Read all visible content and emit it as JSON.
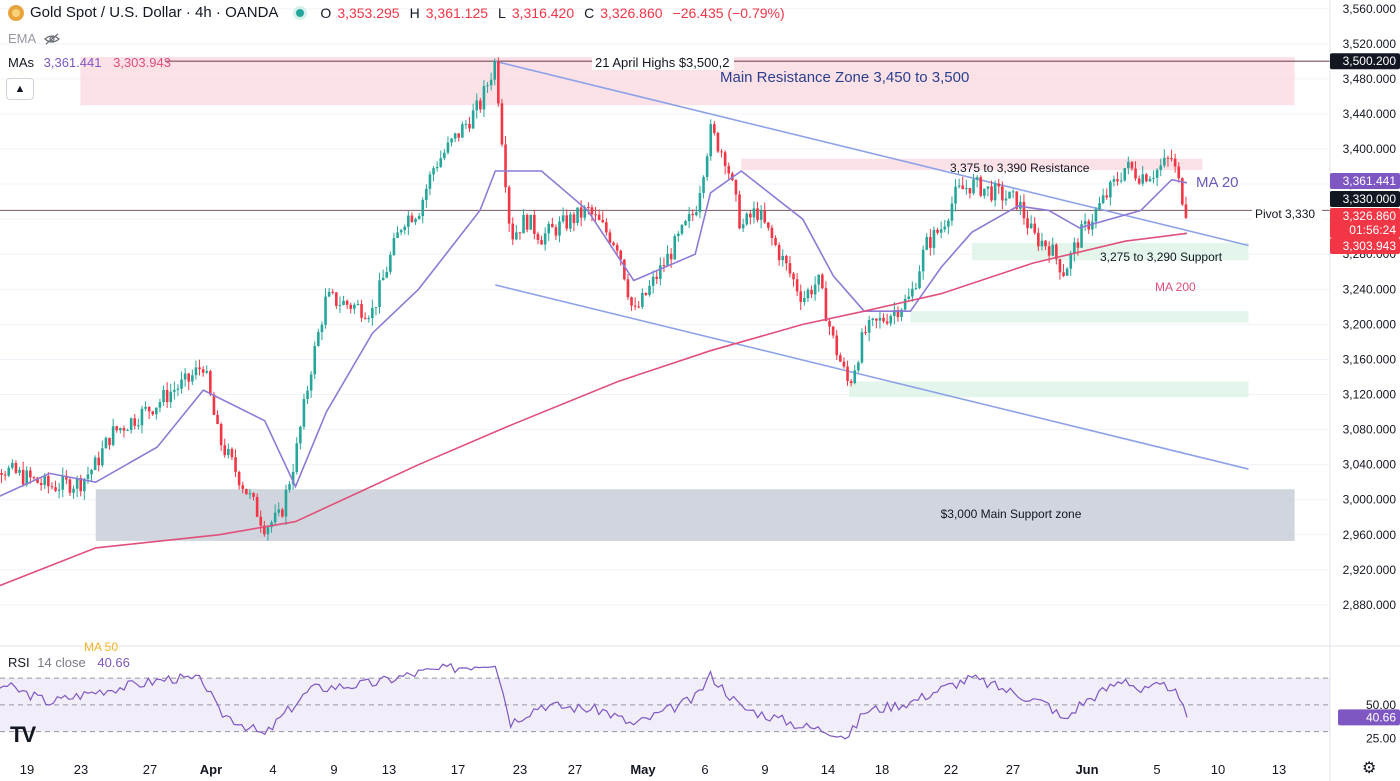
{
  "header": {
    "symbol": "Gold Spot / U.S. Dollar · 4h · OANDA",
    "o_label": "O",
    "o_value": "3,353.295",
    "h_label": "H",
    "h_value": "3,361.125",
    "l_label": "L",
    "l_value": "3,316.420",
    "c_label": "C",
    "c_value": "3,326.860",
    "change": "−26.435 (−0.79%)",
    "ema_label": "EMA",
    "mas_label": "MAs",
    "ma20_value": "3,361.441",
    "ma200_value": "3,303.943",
    "collapse_icon": "chevron-up-icon"
  },
  "rsi_header": {
    "label": "RSI",
    "params": "14 close",
    "value": "40.66"
  },
  "colors": {
    "up": "#26a69a",
    "down": "#f23645",
    "ma20": "#8e7ad6",
    "ma200": "#e0507a",
    "trendline": "#8ea2e8",
    "resistance_fill": "#fbd9e1",
    "support_fill": "#dff5e8",
    "main_support_fill": "#c9ced8",
    "rsi": "#7e57c2",
    "rsi_band": "#ede7f6"
  },
  "chart_data": [
    {
      "type": "candlestick",
      "title": "Gold Spot / U.S. Dollar · 4h · OANDA",
      "y_axis": {
        "ylim": [
          2840,
          3570
        ],
        "ticks": [
          2880,
          2920,
          2960,
          3000,
          3040,
          3080,
          3120,
          3160,
          3200,
          3240,
          3280,
          3320,
          3360,
          3400,
          3440,
          3480,
          3520,
          3560
        ],
        "tick_labels": [
          "2,880.000",
          "2,920.000",
          "2,960.000",
          "3,000.000",
          "3,040.000",
          "3,080.000",
          "3,120.000",
          "3,160.000",
          "3,200.000",
          "3,240.000",
          "3,280.000",
          "3,320.000",
          "3,360.000",
          "3,400.000",
          "3,440.000",
          "3,480.000",
          "3,520.000",
          "3,560.000"
        ]
      },
      "x_axis": {
        "tick_labels": [
          "19",
          "23",
          "27",
          "Apr",
          "4",
          "9",
          "13",
          "17",
          "23",
          "27",
          "May",
          "6",
          "9",
          "14",
          "18",
          "22",
          "27",
          "Jun",
          "5",
          "10",
          "13"
        ],
        "bold_labels": [
          "Apr",
          "May",
          "Jun"
        ]
      },
      "price_path": [
        [
          "2025-03-19",
          3030
        ],
        [
          "2025-03-20",
          3050
        ],
        [
          "2025-03-21",
          3035
        ],
        [
          "2025-03-24",
          3015
        ],
        [
          "2025-03-26",
          3020
        ],
        [
          "2025-03-27",
          3040
        ],
        [
          "2025-03-28",
          3075
        ],
        [
          "2025-03-31",
          3110
        ],
        [
          "2025-04-01",
          3125
        ],
        [
          "2025-04-02",
          3135
        ],
        [
          "2025-04-03",
          3155
        ],
        [
          "2025-04-04",
          3070
        ],
        [
          "2025-04-07",
          2970
        ],
        [
          "2025-04-08",
          2980
        ],
        [
          "2025-04-09",
          3050
        ],
        [
          "2025-04-10",
          3150
        ],
        [
          "2025-04-11",
          3230
        ],
        [
          "2025-04-14",
          3215
        ],
        [
          "2025-04-16",
          3320
        ],
        [
          "2025-04-17",
          3330
        ],
        [
          "2025-04-18",
          3380
        ],
        [
          "2025-04-21",
          3450
        ],
        [
          "2025-04-22",
          3500
        ],
        [
          "2025-04-23",
          3300
        ],
        [
          "2025-04-24",
          3320
        ],
        [
          "2025-04-25",
          3300
        ],
        [
          "2025-04-28",
          3330
        ],
        [
          "2025-04-29",
          3310
        ],
        [
          "2025-04-30",
          3290
        ],
        [
          "2025-05-01",
          3210
        ],
        [
          "2025-05-02",
          3240
        ],
        [
          "2025-05-05",
          3330
        ],
        [
          "2025-05-06",
          3420
        ],
        [
          "2025-05-07",
          3390
        ],
        [
          "2025-05-08",
          3310
        ],
        [
          "2025-05-09",
          3330
        ],
        [
          "2025-05-12",
          3230
        ],
        [
          "2025-05-13",
          3250
        ],
        [
          "2025-05-14",
          3180
        ],
        [
          "2025-05-15",
          3130
        ],
        [
          "2025-05-16",
          3190
        ],
        [
          "2025-05-19",
          3230
        ],
        [
          "2025-05-20",
          3290
        ],
        [
          "2025-05-21",
          3310
        ],
        [
          "2025-05-22",
          3350
        ],
        [
          "2025-05-23",
          3360
        ],
        [
          "2025-05-26",
          3340
        ],
        [
          "2025-05-27",
          3300
        ],
        [
          "2025-05-28",
          3290
        ],
        [
          "2025-05-29",
          3260
        ],
        [
          "2025-05-30",
          3300
        ],
        [
          "2025-06-02",
          3380
        ],
        [
          "2025-06-03",
          3370
        ],
        [
          "2025-06-04",
          3375
        ],
        [
          "2025-06-05",
          3390
        ],
        [
          "2025-06-06",
          3326.86
        ]
      ],
      "series": [
        {
          "name": "MA 20",
          "points": [
            [
              "2025-03-19",
              2990
            ],
            [
              "2025-03-24",
              3030
            ],
            [
              "2025-03-27",
              3020
            ],
            [
              "2025-03-31",
              3060
            ],
            [
              "2025-04-03",
              3125
            ],
            [
              "2025-04-07",
              3090
            ],
            [
              "2025-04-09",
              3015
            ],
            [
              "2025-04-11",
              3100
            ],
            [
              "2025-04-14",
              3190
            ],
            [
              "2025-04-17",
              3240
            ],
            [
              "2025-04-21",
              3330
            ],
            [
              "2025-04-22",
              3375
            ],
            [
              "2025-04-25",
              3375
            ],
            [
              "2025-04-28",
              3330
            ],
            [
              "2025-05-01",
              3250
            ],
            [
              "2025-05-05",
              3280
            ],
            [
              "2025-05-06",
              3350
            ],
            [
              "2025-05-08",
              3375
            ],
            [
              "2025-05-12",
              3320
            ],
            [
              "2025-05-14",
              3255
            ],
            [
              "2025-05-16",
              3215
            ],
            [
              "2025-05-19",
              3215
            ],
            [
              "2025-05-21",
              3265
            ],
            [
              "2025-05-23",
              3305
            ],
            [
              "2025-05-26",
              3335
            ],
            [
              "2025-05-28",
              3330
            ],
            [
              "2025-05-30",
              3310
            ],
            [
              "2025-06-03",
              3330
            ],
            [
              "2025-06-05",
              3365
            ],
            [
              "2025-06-06",
              3361.441
            ]
          ]
        },
        {
          "name": "MA 200",
          "points": [
            [
              "2025-03-19",
              2890
            ],
            [
              "2025-03-27",
              2945
            ],
            [
              "2025-04-04",
              2960
            ],
            [
              "2025-04-09",
              2975
            ],
            [
              "2025-04-17",
              3040
            ],
            [
              "2025-04-23",
              3085
            ],
            [
              "2025-04-30",
              3135
            ],
            [
              "2025-05-06",
              3170
            ],
            [
              "2025-05-12",
              3200
            ],
            [
              "2025-05-16",
              3215
            ],
            [
              "2025-05-21",
              3235
            ],
            [
              "2025-05-27",
              3270
            ],
            [
              "2025-06-02",
              3295
            ],
            [
              "2025-06-06",
              3303.943
            ]
          ]
        }
      ],
      "trendlines": [
        {
          "from": [
            "2025-04-22",
            3500
          ],
          "to": [
            "2025-06-10",
            3290
          ]
        },
        {
          "from": [
            "2025-04-22",
            3245
          ],
          "to": [
            "2025-06-10",
            3035
          ]
        }
      ],
      "zones": [
        {
          "label": "Main Resistance Zone 3,450 to 3,500",
          "low": 3450,
          "high": 3505,
          "from": "2025-03-26",
          "to": "2025-06-13"
        },
        {
          "label": "3,375 to 3,390 Resistance",
          "low": 3376,
          "high": 3389,
          "from": "2025-05-08",
          "to": "2025-06-07"
        },
        {
          "label": "3,275 to 3,290 Support",
          "low": 3273,
          "high": 3293,
          "from": "2025-05-23",
          "to": "2025-06-10"
        },
        {
          "label": "",
          "low": 3202,
          "high": 3215,
          "from": "2025-05-19",
          "to": "2025-06-10"
        },
        {
          "label": "",
          "low": 3117,
          "high": 3135,
          "from": "2025-05-15",
          "to": "2025-06-10"
        },
        {
          "label": "$3,000 Main Support zone",
          "low": 2953,
          "high": 3012,
          "from": "2025-03-27",
          "to": "2025-06-13"
        }
      ],
      "horizontal_lines": [
        {
          "label": "21 April Highs $3,500,2",
          "value": 3500.2
        },
        {
          "label": "Pivot 3,330",
          "value": 3330
        }
      ],
      "annotations": [
        "MA 20",
        "MA 200",
        "MA 50"
      ],
      "price_labels": [
        {
          "text": "3,500.200"
        },
        {
          "text": "3,361.441"
        },
        {
          "text": "3,330.000"
        },
        {
          "text": "3,326.860"
        },
        {
          "text": "01:56:24"
        },
        {
          "text": "3,303.943"
        }
      ]
    },
    {
      "type": "line",
      "title": "RSI 14 close",
      "ylim": [
        20,
        82
      ],
      "tick_labels": [
        "25.00",
        "50.00"
      ],
      "bands": [
        30,
        50,
        70
      ],
      "last_value": "40.66",
      "points": [
        [
          "2025-03-19",
          48
        ],
        [
          "2025-03-21",
          65
        ],
        [
          "2025-03-24",
          52
        ],
        [
          "2025-03-27",
          60
        ],
        [
          "2025-04-01",
          70
        ],
        [
          "2025-04-03",
          68
        ],
        [
          "2025-04-04",
          45
        ],
        [
          "2025-04-07",
          27
        ],
        [
          "2025-04-08",
          40
        ],
        [
          "2025-04-10",
          62
        ],
        [
          "2025-04-14",
          66
        ],
        [
          "2025-04-17",
          74
        ],
        [
          "2025-04-22",
          82
        ],
        [
          "2025-04-23",
          37
        ],
        [
          "2025-04-25",
          50
        ],
        [
          "2025-04-29",
          46
        ],
        [
          "2025-05-01",
          35
        ],
        [
          "2025-05-05",
          55
        ],
        [
          "2025-05-06",
          72
        ],
        [
          "2025-05-08",
          48
        ],
        [
          "2025-05-12",
          34
        ],
        [
          "2025-05-14",
          30
        ],
        [
          "2025-05-15",
          26
        ],
        [
          "2025-05-16",
          45
        ],
        [
          "2025-05-19",
          52
        ],
        [
          "2025-05-21",
          62
        ],
        [
          "2025-05-23",
          70
        ],
        [
          "2025-05-26",
          58
        ],
        [
          "2025-05-28",
          50
        ],
        [
          "2025-05-29",
          38
        ],
        [
          "2025-05-30",
          50
        ],
        [
          "2025-06-02",
          70
        ],
        [
          "2025-06-03",
          60
        ],
        [
          "2025-06-04",
          63
        ],
        [
          "2025-06-05",
          64
        ],
        [
          "2025-06-06",
          40.66
        ]
      ]
    }
  ]
}
